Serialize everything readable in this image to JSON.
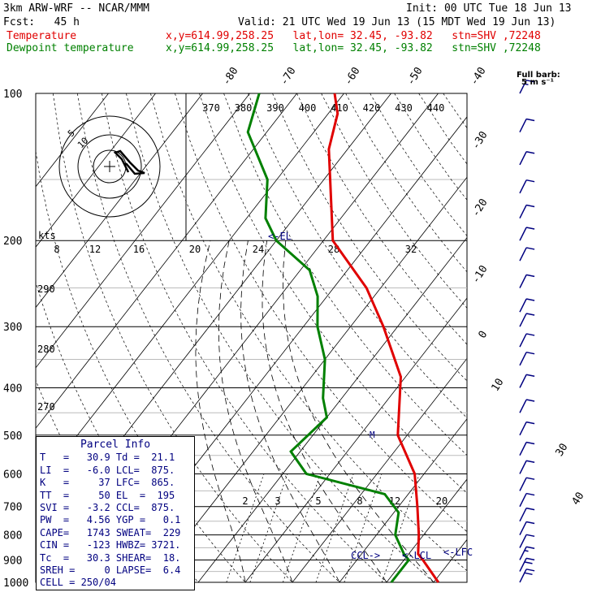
{
  "header": {
    "model": "3km ARW-WRF -- NCAR/MMM",
    "init": "Init: 00 UTC Tue 18 Jun 13",
    "fcst": "Fcst:   45 h",
    "valid": "Valid: 21 UTC Wed 19 Jun 13 (15 MDT Wed 19 Jun 13)",
    "temp_label": "Temperature",
    "dew_label": "Dewpoint temperature",
    "loc_text": "x,y=614.99,258.25   lat,lon= 32.45, -93.82   stn=SHV ,72248"
  },
  "colors": {
    "temperature": "#e00000",
    "dewpoint": "#008000",
    "wind": "#000080",
    "parcel": "#000080"
  },
  "barb_label": {
    "line1": "Full barb:",
    "line2": "5 m s⁻¹"
  },
  "parcel": {
    "title": "Parcel Info",
    "rows": [
      "T   =   30.9 Td =  21.1",
      "LI  =   -6.0 LCL=  875.",
      "K   =     37 LFC=  865.",
      "TT  =     50 EL  =  195",
      "SVI =   -3.2 CCL=  875.",
      "PW  =   4.56 YGP =   0.1",
      "CAPE=   1743 SWEAT=  229",
      "CIN =   -123 HWBZ= 3721.",
      "Tc  =   30.3 SHEAR=  18.",
      "SREH =     0 LAPSE=  6.4",
      "CELL = 250/04"
    ]
  },
  "chart_data": {
    "type": "line",
    "title": "",
    "ylabel": "",
    "xlabel": "",
    "pressure_levels": [
      "100",
      "200",
      "300",
      "400",
      "500",
      "600",
      "700",
      "800",
      "900",
      "1000"
    ],
    "isotherm_labels": [
      "-80",
      "-70",
      "-60",
      "-50",
      "-40",
      "-30",
      "-20",
      "-10",
      "0",
      "10",
      "30",
      "40"
    ],
    "theta_labels": [
      "370",
      "380",
      "390",
      "400",
      "410",
      "420",
      "430",
      "440"
    ],
    "mixing_labels": [
      "2",
      "3",
      "5",
      "8",
      "12",
      "20"
    ],
    "theta_e_left_labels": [
      "290",
      "280",
      "270"
    ],
    "hodograph": {
      "units": "kts",
      "speed_labels": [
        "8",
        "12",
        "16",
        "20",
        "24",
        "28",
        "32"
      ],
      "ring_labels": [
        "5",
        "10"
      ]
    },
    "markers": [
      "<-EL",
      "CCL->",
      "<-LCL",
      "<-LFC"
    ],
    "series": [
      {
        "name": "Temperature",
        "p": [
          100,
          110,
          130,
          200,
          250,
          300,
          380,
          500,
          600,
          700,
          800,
          875,
          900,
          1000
        ],
        "t": [
          -72,
          -68,
          -64,
          -48,
          -33,
          -23,
          -11,
          -2,
          8,
          14,
          19,
          22,
          24,
          31
        ]
      },
      {
        "name": "Dewpoint temperature",
        "p": [
          100,
          120,
          150,
          180,
          200,
          230,
          260,
          300,
          350,
          420,
          460,
          540,
          600,
          660,
          720,
          800,
          875,
          900,
          1000
        ],
        "td": [
          -88,
          -84,
          -72,
          -66,
          -60,
          -48,
          -42,
          -37,
          -30,
          -24,
          -20,
          -22,
          -15,
          5,
          11,
          14,
          19,
          21,
          21
        ]
      }
    ],
    "wind_barbs": {
      "pressure": [
        100,
        120,
        140,
        160,
        180,
        200,
        220,
        250,
        280,
        300,
        330,
        360,
        400,
        450,
        500,
        550,
        600,
        650,
        700,
        750,
        800,
        850,
        900,
        950,
        1000
      ],
      "speed_kt": [
        15,
        12,
        12,
        12,
        10,
        10,
        10,
        10,
        12,
        12,
        10,
        10,
        10,
        10,
        12,
        12,
        12,
        12,
        14,
        14,
        14,
        14,
        16,
        20,
        22
      ]
    }
  }
}
